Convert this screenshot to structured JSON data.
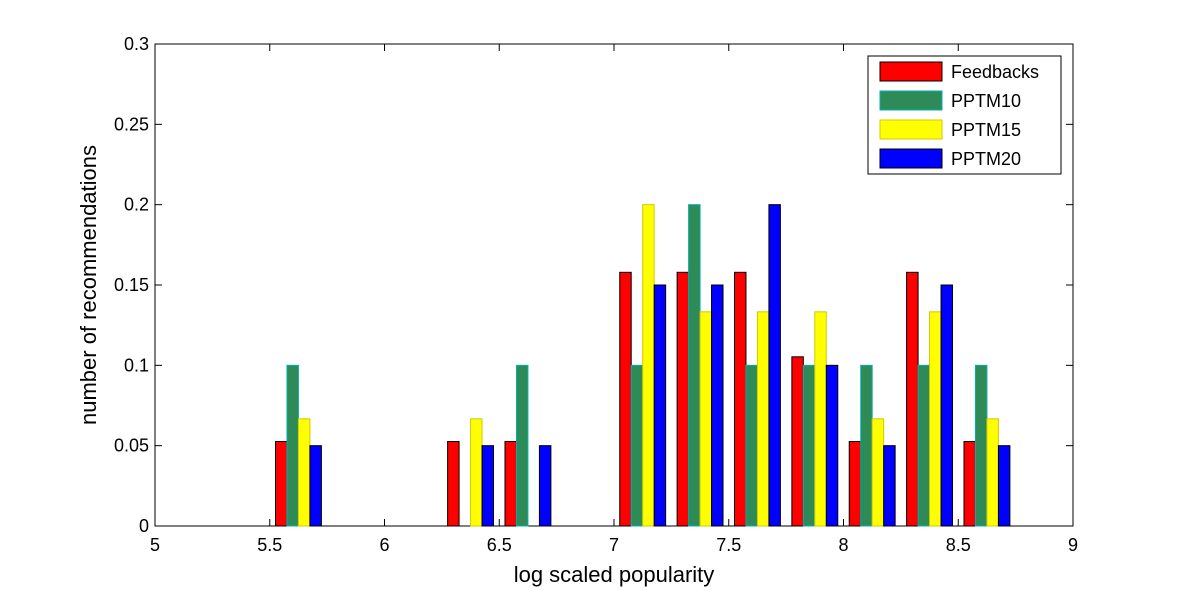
{
  "chart_data": {
    "type": "bar",
    "xlabel": "log scaled popularity",
    "ylabel": "number of recommendations",
    "xlim": [
      5,
      9
    ],
    "ylim": [
      0,
      0.3
    ],
    "xticks": [
      "5",
      "5.5",
      "6",
      "6.5",
      "7",
      "7.5",
      "8",
      "8.5",
      "9"
    ],
    "yticks": [
      "0",
      "0.05",
      "0.1",
      "0.15",
      "0.2",
      "0.25",
      "0.3"
    ],
    "x": [
      5.125,
      5.375,
      5.625,
      5.875,
      6.125,
      6.375,
      6.625,
      6.875,
      7.125,
      7.375,
      7.625,
      7.875,
      8.125,
      8.375,
      8.625,
      8.875
    ],
    "series": [
      {
        "name": "Feedbacks",
        "color": "#ff0000",
        "edge": "#000000",
        "values": [
          0,
          0,
          0.0526,
          0,
          0,
          0.0526,
          0.0526,
          0,
          0.1579,
          0.1579,
          0.1579,
          0.1053,
          0.0526,
          0.1579,
          0.0526,
          0
        ]
      },
      {
        "name": "PPTM10",
        "color": "#2e8b57",
        "edge": "#00b0b0",
        "values": [
          0,
          0,
          0.1,
          0,
          0,
          0,
          0.1,
          0,
          0.1,
          0.2,
          0.1,
          0.1,
          0.1,
          0.1,
          0.1,
          0
        ]
      },
      {
        "name": "PPTM15",
        "color": "#ffff00",
        "edge": "#d4c800",
        "values": [
          0,
          0,
          0.0667,
          0,
          0,
          0.0667,
          0,
          0,
          0.2,
          0.1333,
          0.1333,
          0.1333,
          0.0667,
          0.1333,
          0.0667,
          0
        ]
      },
      {
        "name": "PPTM20",
        "color": "#0000ff",
        "edge": "#000000",
        "values": [
          0,
          0,
          0.05,
          0,
          0,
          0.05,
          0.05,
          0,
          0.15,
          0.15,
          0.2,
          0.1,
          0.05,
          0.15,
          0.05,
          0
        ]
      }
    ],
    "grid": false,
    "legend_position": "top-right"
  }
}
